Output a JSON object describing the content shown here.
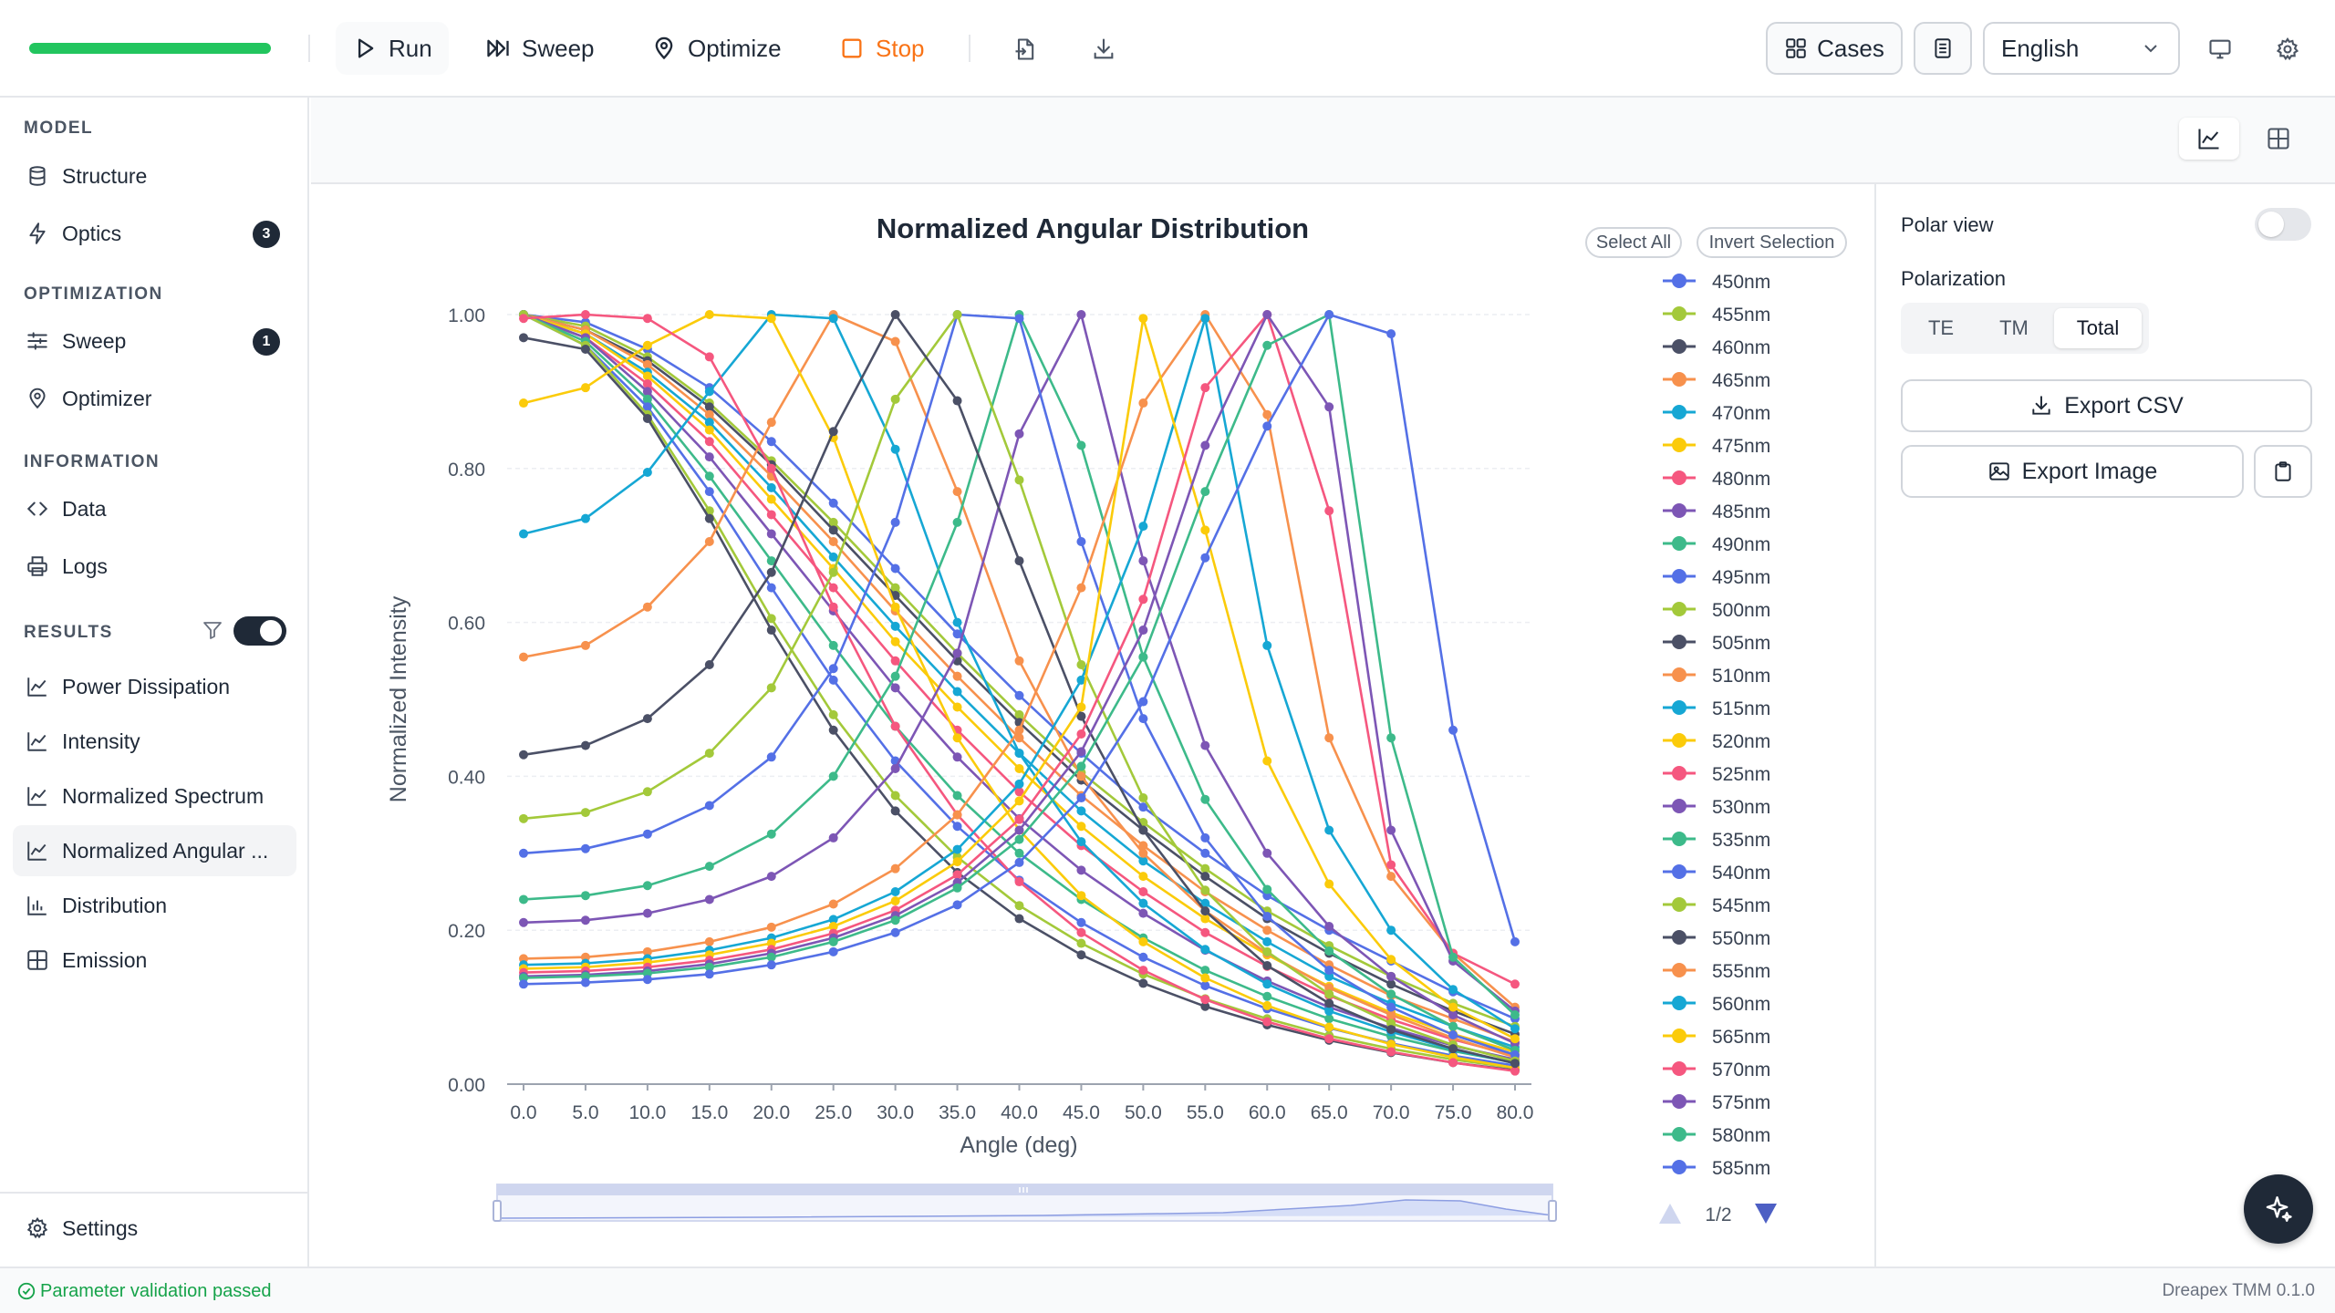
{
  "toolbar": {
    "progress": 1.0,
    "run_label": "Run",
    "sweep_label": "Sweep",
    "optimize_label": "Optimize",
    "stop_label": "Stop",
    "cases_label": "Cases",
    "language": "English",
    "stop_color": "#f97316"
  },
  "sidebar": {
    "model_header": "MODEL",
    "structure_label": "Structure",
    "optics_label": "Optics",
    "optics_badge": "3",
    "optimization_header": "OPTIMIZATION",
    "sweep_label": "Sweep",
    "sweep_badge": "1",
    "optimizer_label": "Optimizer",
    "information_header": "INFORMATION",
    "data_label": "Data",
    "logs_label": "Logs",
    "results_header": "RESULTS",
    "results_toggle_on": true,
    "power_dissipation_label": "Power Dissipation",
    "intensity_label": "Intensity",
    "normalized_spectrum_label": "Normalized Spectrum",
    "normalized_angular_label": "Normalized Angular ...",
    "distribution_label": "Distribution",
    "emission_label": "Emission",
    "settings_label": "Settings"
  },
  "chart": {
    "select_all_label": "Select All",
    "invert_selection_label": "Invert Selection",
    "page_indicator": "1/2"
  },
  "right_panel": {
    "polar_view_label": "Polar view",
    "polar_view_on": false,
    "polarization_label": "Polarization",
    "te_label": "TE",
    "tm_label": "TM",
    "total_label": "Total",
    "selected_polarization": "Total",
    "export_csv_label": "Export CSV",
    "export_image_label": "Export Image"
  },
  "status": {
    "message": "Parameter validation passed",
    "version": "Dreapex TMM 0.1.0"
  },
  "chart_data": {
    "type": "line",
    "title": "Normalized Angular Distribution",
    "xlabel": "Angle (deg)",
    "ylabel": "Normalized Intensity",
    "xlim": [
      0,
      80
    ],
    "ylim": [
      0,
      1
    ],
    "x": [
      0,
      5,
      10,
      15,
      20,
      25,
      30,
      35,
      40,
      45,
      50,
      55,
      60,
      65,
      70,
      75,
      80
    ],
    "x_ticks": [
      "0.0",
      "5.0",
      "10.0",
      "15.0",
      "20.0",
      "25.0",
      "30.0",
      "35.0",
      "40.0",
      "45.0",
      "50.0",
      "55.0",
      "60.0",
      "65.0",
      "70.0",
      "75.0",
      "80.0"
    ],
    "y_ticks": [
      "0.00",
      "0.20",
      "0.40",
      "0.60",
      "0.80",
      "1.00"
    ],
    "grid": true,
    "legend_position": "right",
    "series": [
      {
        "name": "450nm",
        "color": "#5470e6",
        "values": [
          1.0,
          0.99,
          0.955,
          0.905,
          0.835,
          0.755,
          0.67,
          0.585,
          0.505,
          0.43,
          0.36,
          0.3,
          0.245,
          0.2,
          0.16,
          0.12,
          0.085
        ]
      },
      {
        "name": "455nm",
        "color": "#a3c93a",
        "values": [
          1.0,
          0.985,
          0.945,
          0.885,
          0.81,
          0.73,
          0.645,
          0.56,
          0.48,
          0.405,
          0.34,
          0.28,
          0.225,
          0.18,
          0.14,
          0.105,
          0.075
        ]
      },
      {
        "name": "460nm",
        "color": "#4b5066",
        "values": [
          1.0,
          0.98,
          0.94,
          0.88,
          0.805,
          0.72,
          0.635,
          0.55,
          0.47,
          0.395,
          0.33,
          0.27,
          0.215,
          0.17,
          0.13,
          0.095,
          0.065
        ]
      },
      {
        "name": "465nm",
        "color": "#f7914d",
        "values": [
          1.0,
          0.98,
          0.935,
          0.87,
          0.79,
          0.705,
          0.615,
          0.53,
          0.45,
          0.375,
          0.31,
          0.25,
          0.2,
          0.155,
          0.115,
          0.085,
          0.055
        ]
      },
      {
        "name": "470nm",
        "color": "#16a7d4",
        "values": [
          1.0,
          0.975,
          0.925,
          0.86,
          0.775,
          0.685,
          0.595,
          0.51,
          0.43,
          0.355,
          0.29,
          0.235,
          0.185,
          0.14,
          0.105,
          0.075,
          0.048
        ]
      },
      {
        "name": "475nm",
        "color": "#fbcb0a",
        "values": [
          1.0,
          0.975,
          0.92,
          0.85,
          0.76,
          0.67,
          0.575,
          0.49,
          0.41,
          0.335,
          0.27,
          0.215,
          0.168,
          0.127,
          0.093,
          0.065,
          0.042
        ]
      },
      {
        "name": "480nm",
        "color": "#f5577f",
        "values": [
          1.0,
          0.97,
          0.91,
          0.835,
          0.74,
          0.645,
          0.55,
          0.46,
          0.38,
          0.31,
          0.25,
          0.197,
          0.153,
          0.115,
          0.084,
          0.058,
          0.037
        ]
      },
      {
        "name": "485nm",
        "color": "#7d56b5",
        "values": [
          1.0,
          0.97,
          0.9,
          0.815,
          0.715,
          0.615,
          0.515,
          0.425,
          0.345,
          0.278,
          0.222,
          0.174,
          0.134,
          0.1,
          0.073,
          0.05,
          0.032
        ]
      },
      {
        "name": "490nm",
        "color": "#3dba8a",
        "values": [
          1.0,
          0.965,
          0.89,
          0.79,
          0.68,
          0.57,
          0.465,
          0.375,
          0.3,
          0.24,
          0.19,
          0.148,
          0.114,
          0.085,
          0.062,
          0.043,
          0.028
        ]
      },
      {
        "name": "495nm",
        "color": "#5470e6",
        "values": [
          1.0,
          0.96,
          0.88,
          0.77,
          0.645,
          0.525,
          0.42,
          0.335,
          0.265,
          0.21,
          0.165,
          0.128,
          0.098,
          0.073,
          0.053,
          0.037,
          0.024
        ]
      },
      {
        "name": "500nm",
        "color": "#a3c93a",
        "values": [
          1.0,
          0.96,
          0.87,
          0.745,
          0.605,
          0.48,
          0.375,
          0.295,
          0.232,
          0.183,
          0.143,
          0.111,
          0.085,
          0.063,
          0.046,
          0.032,
          0.021
        ]
      },
      {
        "name": "505nm",
        "color": "#4b5066",
        "values": [
          0.97,
          0.955,
          0.865,
          0.735,
          0.59,
          0.46,
          0.355,
          0.275,
          0.215,
          0.168,
          0.131,
          0.101,
          0.077,
          0.057,
          0.041,
          0.028,
          0.018
        ]
      },
      {
        "name": "510nm",
        "color": "#f7914d",
        "values": [
          0.555,
          0.57,
          0.62,
          0.705,
          0.86,
          1.0,
          0.965,
          0.77,
          0.55,
          0.4,
          0.3,
          0.225,
          0.17,
          0.125,
          0.09,
          0.06,
          0.035
        ]
      },
      {
        "name": "515nm",
        "color": "#16a7d4",
        "values": [
          0.715,
          0.735,
          0.795,
          0.9,
          1.0,
          0.995,
          0.825,
          0.6,
          0.43,
          0.315,
          0.235,
          0.175,
          0.13,
          0.095,
          0.068,
          0.045,
          0.027
        ]
      },
      {
        "name": "520nm",
        "color": "#fbcb0a",
        "values": [
          0.885,
          0.905,
          0.96,
          1.0,
          0.995,
          0.84,
          0.62,
          0.45,
          0.33,
          0.245,
          0.185,
          0.138,
          0.102,
          0.074,
          0.052,
          0.035,
          0.021
        ]
      },
      {
        "name": "525nm",
        "color": "#f5577f",
        "values": [
          0.995,
          1.0,
          0.995,
          0.945,
          0.8,
          0.62,
          0.465,
          0.35,
          0.263,
          0.197,
          0.148,
          0.11,
          0.081,
          0.059,
          0.042,
          0.028,
          0.017
        ]
      },
      {
        "name": "530nm",
        "color": "#7d56b5",
        "values": [
          0.21,
          0.213,
          0.222,
          0.24,
          0.27,
          0.32,
          0.41,
          0.56,
          0.845,
          1.0,
          0.68,
          0.44,
          0.3,
          0.205,
          0.14,
          0.09,
          0.053
        ]
      },
      {
        "name": "535nm",
        "color": "#3dba8a",
        "values": [
          0.24,
          0.245,
          0.258,
          0.283,
          0.325,
          0.4,
          0.53,
          0.73,
          1.0,
          0.83,
          0.555,
          0.37,
          0.253,
          0.173,
          0.117,
          0.075,
          0.044
        ]
      },
      {
        "name": "540nm",
        "color": "#5470e6",
        "values": [
          0.3,
          0.306,
          0.325,
          0.362,
          0.425,
          0.54,
          0.73,
          1.0,
          0.995,
          0.705,
          0.475,
          0.32,
          0.218,
          0.148,
          0.1,
          0.064,
          0.038
        ]
      },
      {
        "name": "545nm",
        "color": "#a3c93a",
        "values": [
          0.345,
          0.353,
          0.38,
          0.43,
          0.515,
          0.665,
          0.89,
          1.0,
          0.785,
          0.545,
          0.372,
          0.252,
          0.172,
          0.117,
          0.079,
          0.051,
          0.03
        ]
      },
      {
        "name": "550nm",
        "color": "#4b5066",
        "values": [
          0.428,
          0.44,
          0.475,
          0.545,
          0.665,
          0.848,
          1.0,
          0.888,
          0.68,
          0.478,
          0.33,
          0.225,
          0.154,
          0.105,
          0.071,
          0.046,
          0.027
        ]
      },
      {
        "name": "555nm",
        "color": "#f7914d",
        "values": [
          0.163,
          0.165,
          0.172,
          0.185,
          0.204,
          0.234,
          0.28,
          0.35,
          0.46,
          0.645,
          0.885,
          1.0,
          0.87,
          0.45,
          0.27,
          0.17,
          0.1
        ]
      },
      {
        "name": "560nm",
        "color": "#16a7d4",
        "values": [
          0.155,
          0.157,
          0.163,
          0.174,
          0.19,
          0.214,
          0.25,
          0.305,
          0.39,
          0.525,
          0.725,
          0.995,
          0.57,
          0.33,
          0.2,
          0.123,
          0.072
        ]
      },
      {
        "name": "565nm",
        "color": "#fbcb0a",
        "values": [
          0.15,
          0.152,
          0.158,
          0.168,
          0.183,
          0.205,
          0.238,
          0.289,
          0.368,
          0.49,
          0.995,
          0.72,
          0.42,
          0.26,
          0.162,
          0.1,
          0.059
        ]
      },
      {
        "name": "570nm",
        "color": "#f5577f",
        "values": [
          0.145,
          0.147,
          0.152,
          0.161,
          0.175,
          0.196,
          0.226,
          0.272,
          0.344,
          0.455,
          0.63,
          0.905,
          1.0,
          0.745,
          0.285,
          0.17,
          0.13
        ]
      },
      {
        "name": "575nm",
        "color": "#7d56b5",
        "values": [
          0.14,
          0.142,
          0.147,
          0.156,
          0.17,
          0.19,
          0.219,
          0.262,
          0.33,
          0.432,
          0.59,
          0.83,
          1.0,
          0.88,
          0.33,
          0.16,
          0.095
        ]
      },
      {
        "name": "580nm",
        "color": "#3dba8a",
        "values": [
          0.138,
          0.14,
          0.144,
          0.152,
          0.165,
          0.185,
          0.213,
          0.255,
          0.318,
          0.413,
          0.555,
          0.77,
          0.96,
          1.0,
          0.45,
          0.165,
          0.09
        ]
      },
      {
        "name": "585nm",
        "color": "#5470e6",
        "values": [
          0.13,
          0.132,
          0.136,
          0.143,
          0.155,
          0.172,
          0.197,
          0.233,
          0.288,
          0.372,
          0.497,
          0.684,
          0.855,
          1.0,
          0.975,
          0.46,
          0.185
        ]
      }
    ]
  }
}
